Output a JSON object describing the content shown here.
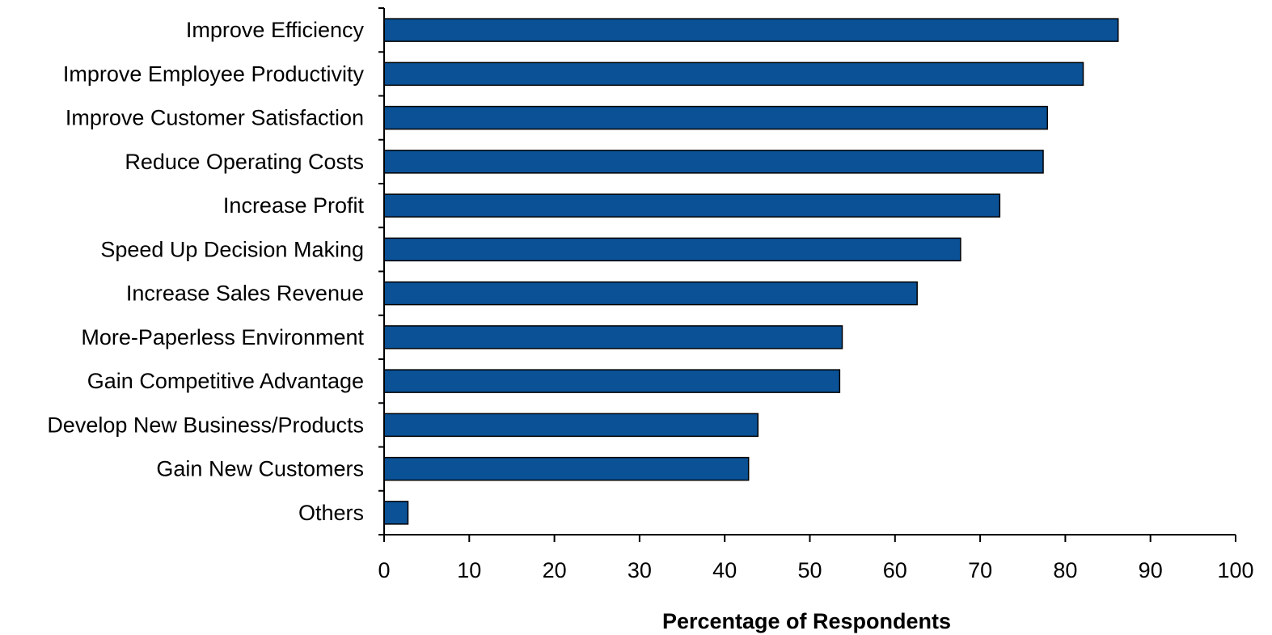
{
  "chart_data": {
    "type": "bar",
    "orientation": "horizontal",
    "categories": [
      "Improve Efficiency",
      "Improve Employee Productivity",
      "Improve Customer Satisfaction",
      "Reduce Operating Costs",
      "Increase Profit",
      "Speed Up Decision Making",
      "Increase Sales Revenue",
      "More-Paperless Environment",
      "Gain Competitive Advantage",
      "Develop New Business/Products",
      "Gain New Customers",
      "Others"
    ],
    "values": [
      86.2,
      82.1,
      77.9,
      77.4,
      72.3,
      67.7,
      62.6,
      53.8,
      53.5,
      43.9,
      42.8,
      2.8
    ],
    "xlabel": "Percentage of Respondents",
    "ylabel": "",
    "xlim": [
      0,
      100
    ],
    "xticks": [
      "0",
      "10",
      "20",
      "30",
      "40",
      "50",
      "60",
      "70",
      "80",
      "90",
      "100"
    ],
    "grid": false,
    "legend": "none",
    "bar_color": "#0A5196",
    "bar_edge_color": "#000000"
  }
}
